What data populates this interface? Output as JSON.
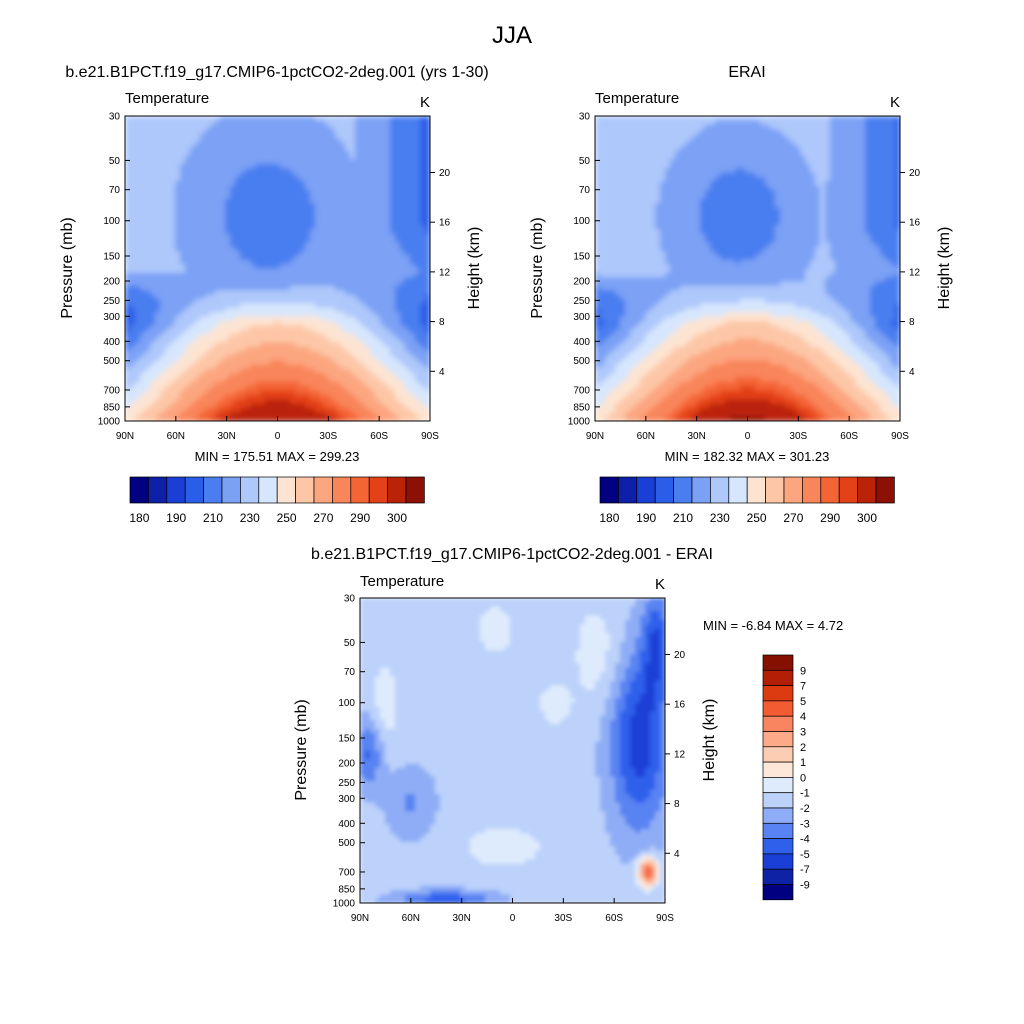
{
  "figure": {
    "title": "JJA"
  },
  "colors": {
    "abs_levels": [
      "#000080",
      "#0e1fa8",
      "#1a3fd6",
      "#2b5ee8",
      "#4a7ef0",
      "#7ba1f5",
      "#aec8fb",
      "#d6e6fd",
      "#fde4d2",
      "#fdc7a7",
      "#fca680",
      "#f9855a",
      "#f46434",
      "#e34117",
      "#bb2308",
      "#8c1004"
    ],
    "diff_levels": [
      "#000080",
      "#0e22a6",
      "#1a3fd6",
      "#2e60ec",
      "#5983f2",
      "#8fadf6",
      "#bcd2fb",
      "#deebfd",
      "#fde7d8",
      "#fdcdb3",
      "#fcaa88",
      "#f98460",
      "#f35c33",
      "#dc3a10",
      "#b31f06",
      "#861000"
    ]
  },
  "chart_data": [
    {
      "type": "heatmap",
      "panel": "model",
      "title": "b.e21.B1PCT.f19_g17.CMIP6-1pctCO2-2deg.001 (yrs 1-30)",
      "left_label": "Temperature",
      "units": "K",
      "xlabel": "",
      "ylabel": "Pressure (mb)",
      "ylabel_right": "Height (km)",
      "x_ticks": [
        "90N",
        "60N",
        "30N",
        "0",
        "30S",
        "60S",
        "90S"
      ],
      "y_ticks": [
        "30",
        "50",
        "70",
        "100",
        "150",
        "200",
        "250",
        "300",
        "400",
        "500",
        "700",
        "850",
        "1000"
      ],
      "height_ticks": [
        "20",
        "16",
        "12",
        "8",
        "4"
      ],
      "stats": "MIN = 175.51  MAX = 299.23",
      "colorbar_labels": [
        "180",
        "190",
        "210",
        "230",
        "250",
        "270",
        "290",
        "300"
      ],
      "x_range": [
        90,
        -90
      ],
      "y_range_mb": [
        30,
        1000
      ],
      "min": 175.51,
      "max": 299.23
    },
    {
      "type": "heatmap",
      "panel": "obs",
      "title": "ERAI",
      "left_label": "Temperature",
      "units": "K",
      "xlabel": "",
      "ylabel": "Pressure (mb)",
      "ylabel_right": "Height (km)",
      "x_ticks": [
        "90N",
        "60N",
        "30N",
        "0",
        "30S",
        "60S",
        "90S"
      ],
      "y_ticks": [
        "30",
        "50",
        "70",
        "100",
        "150",
        "200",
        "250",
        "300",
        "400",
        "500",
        "700",
        "850",
        "1000"
      ],
      "height_ticks": [
        "20",
        "16",
        "12",
        "8",
        "4"
      ],
      "stats": "MIN = 182.32  MAX = 301.23",
      "colorbar_labels": [
        "180",
        "190",
        "210",
        "230",
        "250",
        "270",
        "290",
        "300"
      ],
      "x_range": [
        90,
        -90
      ],
      "y_range_mb": [
        30,
        1000
      ],
      "min": 182.32,
      "max": 301.23
    },
    {
      "type": "heatmap",
      "panel": "diff",
      "title": "b.e21.B1PCT.f19_g17.CMIP6-1pctCO2-2deg.001 - ERAI",
      "left_label": "Temperature",
      "units": "K",
      "xlabel": "",
      "ylabel": "Pressure (mb)",
      "ylabel_right": "Height (km)",
      "x_ticks": [
        "90N",
        "60N",
        "30N",
        "0",
        "30S",
        "60S",
        "90S"
      ],
      "y_ticks": [
        "30",
        "50",
        "70",
        "100",
        "150",
        "200",
        "250",
        "300",
        "400",
        "500",
        "700",
        "850",
        "1000"
      ],
      "height_ticks": [
        "20",
        "16",
        "12",
        "8",
        "4"
      ],
      "stats": "MIN =  -6.84  MAX =   4.72",
      "colorbar_labels": [
        "9",
        "7",
        "5",
        "4",
        "3",
        "2",
        "1",
        "0",
        "-1",
        "-2",
        "-3",
        "-4",
        "-5",
        "-7",
        "-9"
      ],
      "x_range": [
        90,
        -90
      ],
      "y_range_mb": [
        30,
        1000
      ],
      "min": -6.84,
      "max": 4.72
    }
  ]
}
